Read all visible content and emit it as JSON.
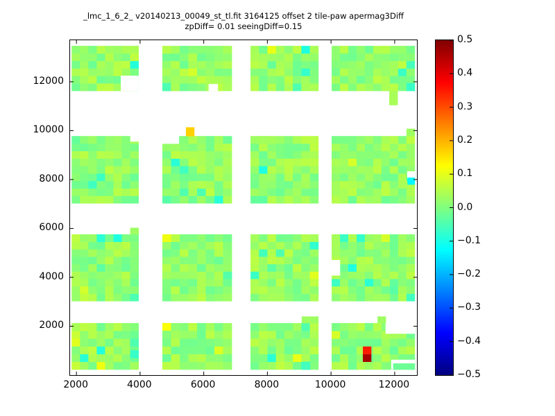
{
  "chart_data": {
    "type": "heatmap",
    "title": "_lmc_1_6_2_ v20140213_00049_st_tl.fit 3164125 offset 2 tile-paw apermag3Diff",
    "subtitle": "zpDiff= 0.01 seeingDiff=0.15",
    "xlabel": "",
    "ylabel": "",
    "xlim": [
      1800,
      12700
    ],
    "ylim": [
      0,
      13700
    ],
    "xticks": [
      2000,
      4000,
      6000,
      8000,
      10000,
      12000
    ],
    "yticks": [
      2000,
      4000,
      6000,
      8000,
      10000,
      12000
    ],
    "xtick_labels": [
      "2000",
      "4000",
      "6000",
      "8000",
      "10000",
      "12000"
    ],
    "ytick_labels": [
      "2000",
      "4000",
      "6000",
      "8000",
      "10000",
      "12000"
    ],
    "grid": false,
    "colormap": "jet",
    "colorbar": {
      "position": "right",
      "vmin": -0.5,
      "vmax": 0.5,
      "tick_values": [
        0.5,
        0.4,
        0.3,
        0.2,
        0.1,
        0.0,
        -0.1,
        -0.2,
        -0.3,
        -0.4,
        -0.5
      ],
      "tick_labels": [
        "0.5",
        "0.4",
        "0.3",
        "0.2",
        "0.1",
        "0.0",
        "−0.1",
        "−0.2",
        "−0.3",
        "−0.4",
        "−0.5"
      ]
    },
    "base_value": 0.02,
    "noise_amplitude": 0.04,
    "cell_size": [
      265,
      300
    ],
    "blocks": [
      {
        "x0": 1850,
        "y0": 230,
        "x1": 3950,
        "y1": 2130
      },
      {
        "x0": 4700,
        "y0": 230,
        "x1": 6880,
        "y1": 2130
      },
      {
        "x0": 7470,
        "y0": 230,
        "x1": 9600,
        "y1": 2130
      },
      {
        "x0": 10020,
        "y0": 230,
        "x1": 12630,
        "y1": 2130
      },
      {
        "x0": 1850,
        "y0": 3030,
        "x1": 3950,
        "y1": 5760
      },
      {
        "x0": 4700,
        "y0": 3030,
        "x1": 6880,
        "y1": 5760
      },
      {
        "x0": 7470,
        "y0": 3030,
        "x1": 9600,
        "y1": 5760
      },
      {
        "x0": 10020,
        "y0": 3030,
        "x1": 12630,
        "y1": 5760
      },
      {
        "x0": 1850,
        "y0": 7030,
        "x1": 3950,
        "y1": 9780
      },
      {
        "x0": 4700,
        "y0": 7030,
        "x1": 6880,
        "y1": 9780
      },
      {
        "x0": 7470,
        "y0": 7030,
        "x1": 9600,
        "y1": 9780
      },
      {
        "x0": 10020,
        "y0": 7030,
        "x1": 12630,
        "y1": 9780
      },
      {
        "x0": 1850,
        "y0": 11630,
        "x1": 3950,
        "y1": 13470
      },
      {
        "x0": 4700,
        "y0": 11630,
        "x1": 6880,
        "y1": 13470
      },
      {
        "x0": 7470,
        "y0": 11630,
        "x1": 9600,
        "y1": 13470
      },
      {
        "x0": 10020,
        "y0": 11630,
        "x1": 12630,
        "y1": 13470
      }
    ],
    "holes": [
      {
        "x0": 3400,
        "y0": 11630,
        "x1": 3950,
        "y1": 12240
      },
      {
        "x0": 10020,
        "y0": 4080,
        "x1": 10280,
        "y1": 4700
      },
      {
        "x0": 4700,
        "y0": 9470,
        "x1": 5220,
        "y1": 9780
      },
      {
        "x0": 11720,
        "y0": 1700,
        "x1": 12630,
        "y1": 2130
      },
      {
        "x0": 11900,
        "y0": 230,
        "x1": 12630,
        "y1": 620
      },
      {
        "x0": 6160,
        "y0": 11630,
        "x1": 6440,
        "y1": 11900
      },
      {
        "x0": 3700,
        "y0": 9560,
        "x1": 3950,
        "y1": 9780
      },
      {
        "x0": 12400,
        "y0": 8080,
        "x1": 12630,
        "y1": 8330
      }
    ],
    "cells": [
      {
        "x0": 5440,
        "y0": 9780,
        "x1": 5700,
        "y1": 10140,
        "value": 0.17
      },
      {
        "x0": 4700,
        "y0": 1830,
        "x1": 4960,
        "y1": 2130,
        "value": 0.12
      },
      {
        "x0": 11000,
        "y0": 550,
        "x1": 11260,
        "y1": 860,
        "value": 0.46
      },
      {
        "x0": 11000,
        "y0": 860,
        "x1": 11260,
        "y1": 1170,
        "value": 0.35
      },
      {
        "x0": 12400,
        "y0": 7800,
        "x1": 12630,
        "y1": 8080,
        "value": -0.13
      },
      {
        "x0": 3690,
        "y0": 700,
        "x1": 3950,
        "y1": 1020,
        "value": -0.07
      },
      {
        "x0": 9080,
        "y0": 230,
        "x1": 9340,
        "y1": 550,
        "value": -0.06
      },
      {
        "x0": 12370,
        "y0": 11630,
        "x1": 12630,
        "y1": 11950,
        "value": -0.07
      },
      {
        "x0": 4700,
        "y0": 11630,
        "x1": 4960,
        "y1": 11950,
        "value": -0.05
      },
      {
        "x0": 3690,
        "y0": 5760,
        "x1": 3950,
        "y1": 6030,
        "value": 0.03
      },
      {
        "x0": 9080,
        "y0": 2130,
        "x1": 9600,
        "y1": 2400,
        "value": 0.03
      },
      {
        "x0": 11830,
        "y0": 11050,
        "x1": 12090,
        "y1": 11630,
        "value": 0.04
      },
      {
        "x0": 11950,
        "y0": 230,
        "x1": 12630,
        "y1": 480,
        "value": -0.02
      },
      {
        "x0": 11460,
        "y0": 2130,
        "x1": 11720,
        "y1": 2400,
        "value": 0.03
      },
      {
        "x0": 12370,
        "y0": 9780,
        "x1": 12630,
        "y1": 10080,
        "value": 0.03
      }
    ],
    "colors": {
      "axes": "#000000",
      "background": "#ffffff",
      "anomaly_red": "#d01000",
      "anomaly_yellow": "#ffd000",
      "base_green": "#8df58b"
    }
  }
}
